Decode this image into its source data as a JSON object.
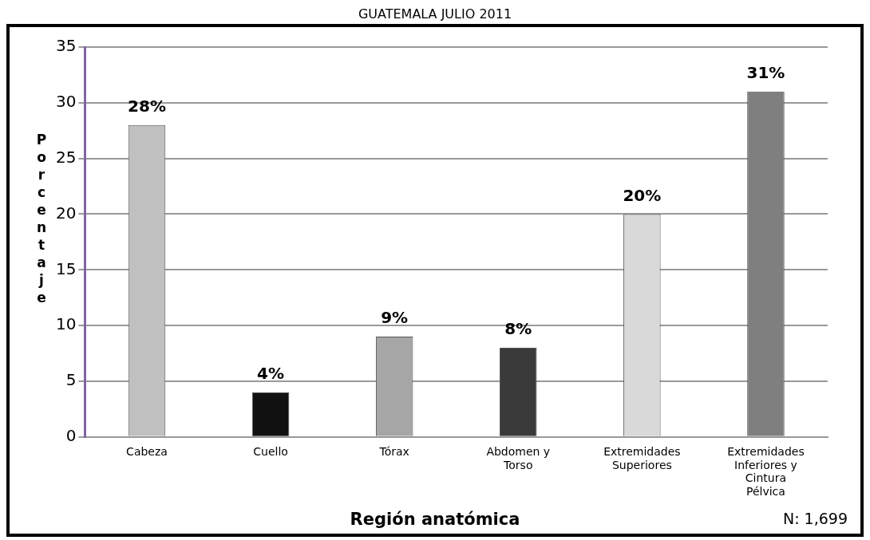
{
  "chart_data": {
    "type": "bar",
    "title": "GUATEMALA JULIO 2011",
    "xlabel": "Región anatómica",
    "ylabel": "Porcentaje",
    "categories": [
      "Cabeza",
      "Cuello",
      "Tórax",
      "Abdomen y Torso",
      "Extremidades Superiores",
      "Extremidades Inferiores y Cintura Pélvica"
    ],
    "values": [
      28,
      4,
      9,
      8,
      20,
      31
    ],
    "value_labels": [
      "28%",
      "4%",
      "9%",
      "8%",
      "20%",
      "31%"
    ],
    "colors": [
      "#c0c0c0",
      "#111111",
      "#a6a6a6",
      "#3a3a3a",
      "#d9d9d9",
      "#7f7f7f"
    ],
    "ylim": [
      0,
      35
    ],
    "yticks": [
      0,
      5,
      10,
      15,
      20,
      25,
      30,
      35
    ],
    "grid": "y",
    "annotations": [
      "N: 1,699"
    ]
  }
}
